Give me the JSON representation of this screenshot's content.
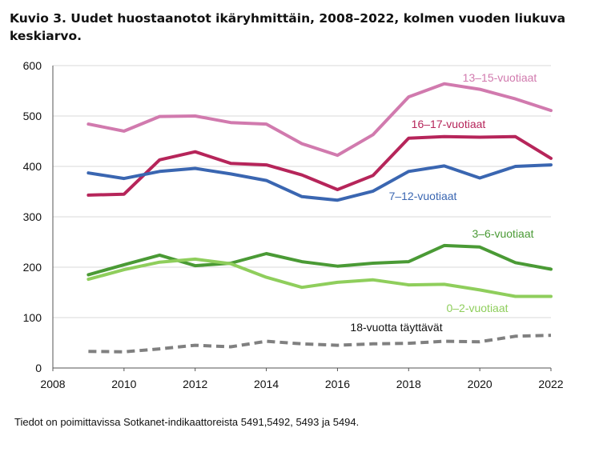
{
  "title": "Kuvio 3. Uudet huostaanotot ikäryhmittäin, 2008–2022, kolmen vuoden liukuva keskiarvo.",
  "source_note": "Tiedot on poimittavissa Sotkanet-indikaattoreista 5491,5492, 5493 ja 5494.",
  "chart_data": {
    "type": "line",
    "title": "",
    "xlabel": "",
    "ylabel": "",
    "xlim": [
      2008,
      2022
    ],
    "ylim": [
      0,
      600
    ],
    "xticks": [
      "2008",
      "2010",
      "2012",
      "2014",
      "2016",
      "2018",
      "2020",
      "2022"
    ],
    "yticks": [
      "0",
      "100",
      "200",
      "300",
      "400",
      "500",
      "600"
    ],
    "grid": "horizontal",
    "x": [
      2009,
      2010,
      2011,
      2012,
      2013,
      2014,
      2015,
      2016,
      2017,
      2018,
      2019,
      2020,
      2021,
      2022
    ],
    "series": [
      {
        "name": "13–15-vuotiaat",
        "color": "#d17aae",
        "dashed": false,
        "values": [
          484,
          470,
          499,
          500,
          487,
          484,
          445,
          422,
          463,
          538,
          564,
          553,
          534,
          511
        ]
      },
      {
        "name": "16–17-vuotiaat",
        "color": "#b6255a",
        "dashed": false,
        "values": [
          343,
          345,
          413,
          429,
          406,
          403,
          383,
          354,
          382,
          456,
          459,
          458,
          459,
          416
        ]
      },
      {
        "name": "7–12-vuotiaat",
        "color": "#3a66b1",
        "dashed": false,
        "values": [
          387,
          376,
          390,
          396,
          385,
          372,
          340,
          333,
          351,
          390,
          401,
          377,
          400,
          403
        ]
      },
      {
        "name": "3–6-vuotiaat",
        "color": "#4a9a35",
        "dashed": false,
        "values": [
          185,
          205,
          224,
          203,
          208,
          227,
          211,
          202,
          208,
          211,
          243,
          240,
          209,
          196
        ]
      },
      {
        "name": "0–2-vuotiaat",
        "color": "#8fce5c",
        "dashed": false,
        "values": [
          176,
          195,
          210,
          216,
          207,
          180,
          160,
          170,
          175,
          165,
          166,
          155,
          142,
          142
        ]
      },
      {
        "name": "18-vuotta täyttävät",
        "color": "#808080",
        "dashed": true,
        "values": [
          33,
          32,
          38,
          45,
          42,
          53,
          48,
          45,
          48,
          49,
          53,
          52,
          63,
          65
        ]
      }
    ]
  }
}
